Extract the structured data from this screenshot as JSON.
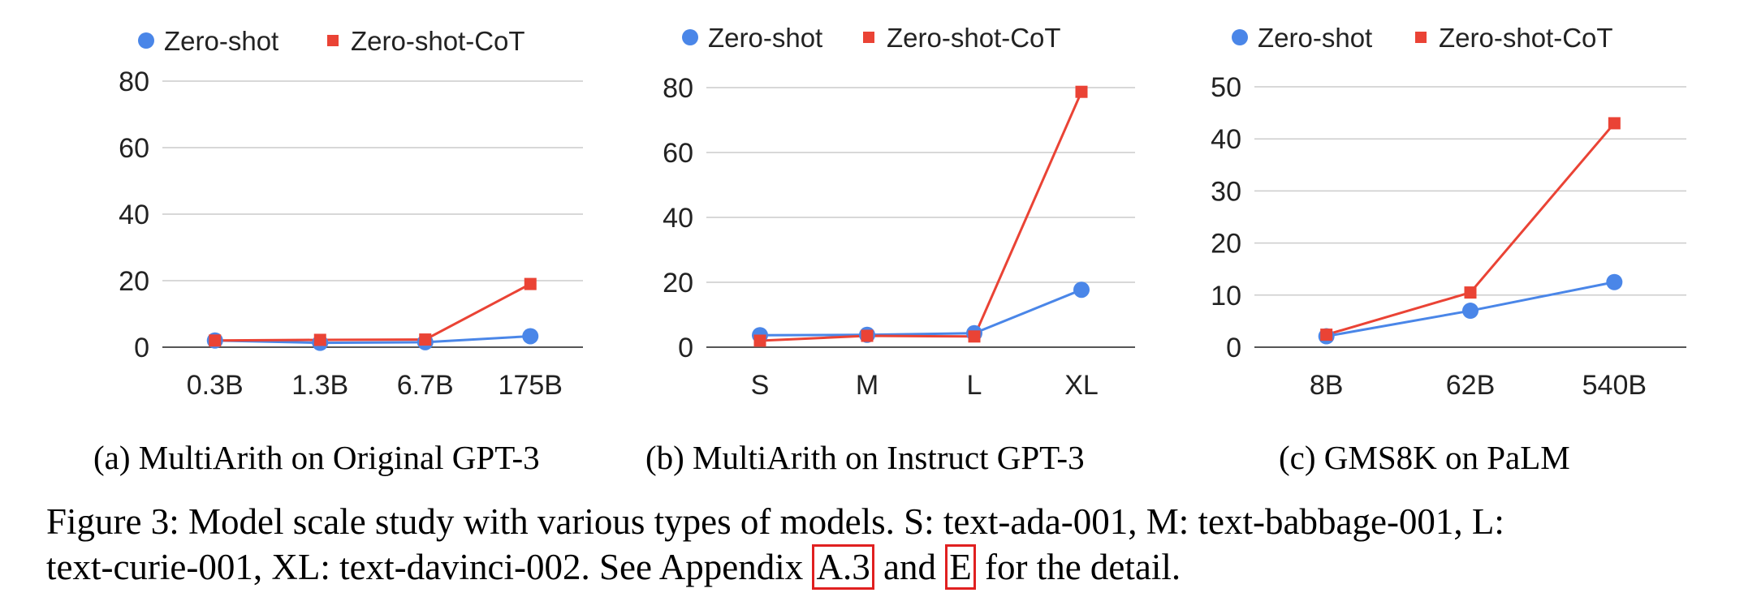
{
  "colors": {
    "zero_shot": "#4a86e8",
    "zero_shot_cot": "#ea4335",
    "grid": "#cccccc",
    "axis": "#555555",
    "ref_box": "#e02020"
  },
  "chart_data": [
    {
      "type": "line",
      "legend_position": "top",
      "grid": true,
      "categories": [
        "0.3B",
        "1.3B",
        "6.7B",
        "175B"
      ],
      "ylim": [
        0,
        80
      ],
      "yticks": [
        0,
        20,
        40,
        60,
        80
      ],
      "series": [
        {
          "name": "Zero-shot",
          "marker": "circle",
          "values": [
            2.0,
            1.3,
            1.5,
            3.3
          ]
        },
        {
          "name": "Zero-shot-CoT",
          "marker": "square",
          "values": [
            2.0,
            2.2,
            2.3,
            19.0
          ]
        }
      ],
      "subcaption": "(a) MultiArith on Original GPT-3"
    },
    {
      "type": "line",
      "legend_position": "top",
      "grid": true,
      "categories": [
        "S",
        "M",
        "L",
        "XL"
      ],
      "ylim": [
        0,
        80
      ],
      "yticks": [
        0,
        20,
        40,
        60,
        80
      ],
      "series": [
        {
          "name": "Zero-shot",
          "marker": "circle",
          "values": [
            3.7,
            3.8,
            4.3,
            17.7
          ]
        },
        {
          "name": "Zero-shot-CoT",
          "marker": "square",
          "values": [
            2.0,
            3.5,
            3.3,
            78.7
          ]
        }
      ],
      "subcaption": "(b) MultiArith on Instruct GPT-3"
    },
    {
      "type": "line",
      "legend_position": "top",
      "grid": true,
      "categories": [
        "8B",
        "62B",
        "540B"
      ],
      "ylim": [
        0,
        50
      ],
      "yticks": [
        0,
        10,
        20,
        30,
        40,
        50
      ],
      "series": [
        {
          "name": "Zero-shot",
          "marker": "circle",
          "values": [
            2.1,
            7.0,
            12.5
          ]
        },
        {
          "name": "Zero-shot-CoT",
          "marker": "square",
          "values": [
            2.4,
            10.5,
            43.0
          ]
        }
      ],
      "subcaption": "(c) GMS8K on PaLM"
    }
  ],
  "caption": {
    "line1": "Figure 3: Model scale study with various types of models. S: text-ada-001, M: text-babbage-001, L:",
    "line2_pre": "text-curie-001, XL: text-davinci-002. See Appendix ",
    "ref1": "A.3",
    "mid": " and ",
    "ref2": "E",
    "line2_post": " for the detail."
  }
}
